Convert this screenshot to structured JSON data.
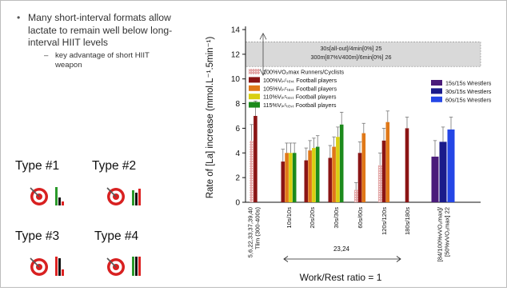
{
  "bullets": {
    "main": "Many short-interval formats allow lactate to remain well below long-interval HIIT levels",
    "sub": "key advantage of short HIIT weapon"
  },
  "types": [
    {
      "label": "Type #1",
      "icon": "target-and-bars-1"
    },
    {
      "label": "Type #2",
      "icon": "target-and-bars-2"
    },
    {
      "label": "Type #3",
      "icon": "target-and-bars-3"
    },
    {
      "label": "Type #4",
      "icon": "target-and-bars-4"
    }
  ],
  "colors": {
    "runners": "#e3a5a5",
    "football100": "#8b1515",
    "football105": "#e07818",
    "football110": "#d9cf10",
    "football115": "#1c8a1c",
    "wrestlers15": "#4a1b7a",
    "wrestlers30": "#1a1a8a",
    "wrestlers60": "#2446e6",
    "band": "#d9d9d9"
  },
  "chart_data": {
    "type": "bar",
    "ylabel": "Rate of [La] increase (mmol.L⁻¹.5min⁻¹)",
    "xlabel": "Work/Rest ratio = 1",
    "ylim": [
      0,
      14
    ],
    "yticks": [
      "0",
      "2",
      "4",
      "6",
      "8",
      "10",
      "12",
      "14"
    ],
    "categories": [
      {
        "label": "5,6,22,33,37,39,40\nTlim (300-400s)"
      },
      {
        "label": "10s/10s"
      },
      {
        "label": "20s/20s"
      },
      {
        "label": "30s/30s"
      },
      {
        "label": "60s/60s"
      },
      {
        "label": "120s/120s"
      },
      {
        "label": "180s/180s"
      },
      {
        "label": "[84/100%vVO₂max]/\n[50%vVO₂max] 22"
      }
    ],
    "ref_label": "23,24",
    "band": {
      "range": [
        11,
        13
      ],
      "lines": [
        "30s[all-out]/4min[0%] 25",
        "300m[87%V400m]/6min[0%] 26"
      ]
    },
    "legend_left": [
      {
        "text": "100%VO₂max Runners/Cyclists",
        "key": "runners"
      },
      {
        "text": "100%Vᵢₙᶜₜₑₛₜ Football players",
        "key": "football100"
      },
      {
        "text": "105%Vᵢₙᶜₜₑₛₜ Football players",
        "key": "football105"
      },
      {
        "text": "110%Vᵢₙᶜₜₑₛₜ Football players",
        "key": "football110"
      },
      {
        "text": "115%Vᵢₙᶜₜₑₛₜ Football players",
        "key": "football115"
      }
    ],
    "legend_right": [
      {
        "text": "15s/15s Wrestlers",
        "key": "wrestlers15"
      },
      {
        "text": "30s/15s Wrestlers",
        "key": "wrestlers30"
      },
      {
        "text": "60s/15s Wrestlers",
        "key": "wrestlers60"
      }
    ],
    "series": [
      {
        "key": "runners",
        "values": [
          5.0,
          null,
          null,
          null,
          1.0,
          3.0,
          null,
          null
        ],
        "errors": [
          1.3,
          null,
          null,
          null,
          0.6,
          1.0,
          null,
          null
        ]
      },
      {
        "key": "football100",
        "values": [
          7.0,
          3.3,
          3.4,
          3.6,
          4.0,
          5.0,
          6.0,
          null
        ],
        "errors": [
          1.2,
          1.0,
          1.0,
          1.0,
          0.9,
          1.0,
          0.9,
          null
        ]
      },
      {
        "key": "football105",
        "values": [
          null,
          4.0,
          4.2,
          4.5,
          5.6,
          6.5,
          null,
          null
        ],
        "errors": [
          null,
          0.8,
          0.8,
          0.8,
          0.8,
          0.9,
          null,
          null
        ]
      },
      {
        "key": "football110",
        "values": [
          null,
          4.0,
          4.4,
          5.3,
          null,
          null,
          null,
          null
        ],
        "errors": [
          null,
          0.8,
          0.8,
          0.8,
          null,
          null,
          null,
          null
        ]
      },
      {
        "key": "football115",
        "values": [
          null,
          4.0,
          4.5,
          6.3,
          null,
          null,
          null,
          null
        ],
        "errors": [
          null,
          0.8,
          0.9,
          1.0,
          null,
          null,
          null,
          null
        ]
      },
      {
        "key": "wrestlers15",
        "values": [
          null,
          null,
          null,
          null,
          null,
          null,
          null,
          3.7
        ],
        "errors": [
          null,
          null,
          null,
          null,
          null,
          null,
          null,
          1.3
        ]
      },
      {
        "key": "wrestlers30",
        "values": [
          null,
          null,
          null,
          null,
          null,
          null,
          null,
          4.9
        ],
        "errors": [
          null,
          null,
          null,
          null,
          null,
          null,
          null,
          1.2
        ]
      },
      {
        "key": "wrestlers60",
        "values": [
          null,
          null,
          null,
          null,
          null,
          null,
          null,
          5.9
        ],
        "errors": [
          null,
          null,
          null,
          null,
          null,
          null,
          null,
          1.0
        ]
      }
    ]
  }
}
